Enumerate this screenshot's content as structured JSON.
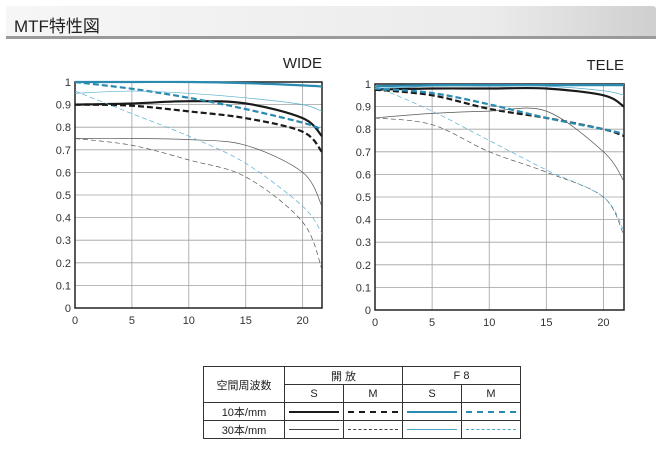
{
  "header": {
    "title": "MTF特性図"
  },
  "colors": {
    "black": "#1a1a1a",
    "blue": "#2a8ab0",
    "grid": "#9a9a9a"
  },
  "legend": {
    "corner": "空間周波数",
    "open": "開 放",
    "f8": "F 8",
    "s": "S",
    "m": "M",
    "row10": "10本/mm",
    "row30": "30本/mm"
  },
  "chart_data": [
    {
      "type": "line",
      "title": "WIDE",
      "xlim": [
        0,
        21.7
      ],
      "ylim": [
        0,
        1
      ],
      "xticks": [
        "0",
        "5",
        "10",
        "15",
        "20"
      ],
      "yticks": [
        "0",
        "0.1",
        "0.2",
        "0.3",
        "0.4",
        "0.5",
        "0.6",
        "0.7",
        "0.8",
        "0.9",
        "1"
      ],
      "grid": true,
      "x": [
        0,
        5,
        10,
        15,
        20,
        21.7
      ],
      "series": [
        {
          "name": "開放 10本/mm S",
          "color": "black",
          "width": 2.2,
          "dash": false,
          "values": [
            0.9,
            0.905,
            0.915,
            0.905,
            0.84,
            0.76
          ]
        },
        {
          "name": "開放 10本/mm M",
          "color": "black",
          "width": 2.2,
          "dash": true,
          "values": [
            0.9,
            0.895,
            0.87,
            0.84,
            0.78,
            0.69
          ]
        },
        {
          "name": "開放 30本/mm S",
          "color": "black",
          "width": 0.7,
          "dash": false,
          "values": [
            0.75,
            0.75,
            0.745,
            0.72,
            0.6,
            0.45
          ]
        },
        {
          "name": "開放 30本/mm M",
          "color": "black",
          "width": 0.7,
          "dash": true,
          "values": [
            0.75,
            0.72,
            0.655,
            0.58,
            0.38,
            0.17
          ]
        },
        {
          "name": "F8 10本/mm S",
          "color": "blue",
          "width": 2.2,
          "dash": false,
          "values": [
            1.0,
            1.0,
            1.0,
            0.995,
            0.985,
            0.98
          ]
        },
        {
          "name": "F8 10本/mm M",
          "color": "blue",
          "width": 2.2,
          "dash": true,
          "values": [
            1.0,
            0.97,
            0.93,
            0.88,
            0.82,
            0.79
          ]
        },
        {
          "name": "F8 30本/mm S",
          "color": "blue",
          "width": 0.7,
          "dash": false,
          "values": [
            0.95,
            0.96,
            0.95,
            0.93,
            0.9,
            0.87
          ]
        },
        {
          "name": "F8 30本/mm M",
          "color": "blue",
          "width": 0.7,
          "dash": true,
          "values": [
            0.96,
            0.86,
            0.76,
            0.64,
            0.45,
            0.33
          ]
        }
      ]
    },
    {
      "type": "line",
      "title": "TELE",
      "xlim": [
        0,
        21.8
      ],
      "ylim": [
        0,
        1
      ],
      "xticks": [
        "0",
        "5",
        "10",
        "15",
        "20"
      ],
      "yticks": [
        "0",
        "0.1",
        "0.2",
        "0.3",
        "0.4",
        "0.5",
        "0.6",
        "0.7",
        "0.8",
        "0.9",
        "1"
      ],
      "grid": true,
      "x": [
        0,
        5,
        10,
        15,
        20,
        21.8
      ],
      "series": [
        {
          "name": "開放 10本/mm S",
          "color": "black",
          "width": 2.2,
          "dash": false,
          "values": [
            0.975,
            0.98,
            0.98,
            0.98,
            0.95,
            0.9
          ]
        },
        {
          "name": "開放 10本/mm M",
          "color": "black",
          "width": 2.2,
          "dash": true,
          "values": [
            0.975,
            0.95,
            0.89,
            0.85,
            0.8,
            0.77
          ]
        },
        {
          "name": "開放 30本/mm S",
          "color": "black",
          "width": 0.7,
          "dash": false,
          "values": [
            0.85,
            0.87,
            0.88,
            0.88,
            0.7,
            0.57
          ]
        },
        {
          "name": "開放 30本/mm M",
          "color": "black",
          "width": 0.7,
          "dash": true,
          "values": [
            0.85,
            0.82,
            0.7,
            0.61,
            0.5,
            0.33
          ]
        },
        {
          "name": "F8 10本/mm S",
          "color": "blue",
          "width": 2.2,
          "dash": false,
          "values": [
            0.99,
            0.995,
            0.995,
            0.995,
            0.995,
            0.995
          ]
        },
        {
          "name": "F8 10本/mm M",
          "color": "blue",
          "width": 2.2,
          "dash": true,
          "values": [
            0.98,
            0.96,
            0.91,
            0.85,
            0.8,
            0.78
          ]
        },
        {
          "name": "F8 30本/mm S",
          "color": "blue",
          "width": 0.7,
          "dash": false,
          "values": [
            0.98,
            0.99,
            0.99,
            0.99,
            0.97,
            0.95
          ]
        },
        {
          "name": "F8 30本/mm M",
          "color": "blue",
          "width": 0.7,
          "dash": true,
          "values": [
            0.99,
            0.88,
            0.75,
            0.62,
            0.5,
            0.35
          ]
        }
      ]
    }
  ]
}
